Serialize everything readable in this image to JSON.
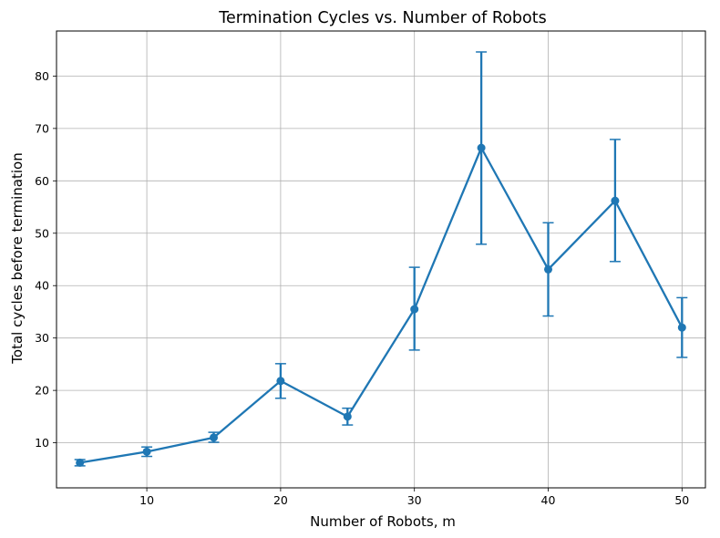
{
  "chart_data": {
    "type": "line",
    "title": "Termination Cycles vs. Number of Robots",
    "xlabel": "Number of Robots, m",
    "ylabel": "Total cycles before termination",
    "xlim": [
      3.25,
      51.75
    ],
    "ylim": [
      1.4,
      88.6
    ],
    "xticks": [
      10,
      20,
      30,
      40,
      50
    ],
    "yticks": [
      10,
      20,
      30,
      40,
      50,
      60,
      70,
      80
    ],
    "grid": true,
    "color": "#1f77b4",
    "x": [
      5,
      10,
      15,
      20,
      25,
      30,
      35,
      40,
      45,
      50
    ],
    "y": [
      6.2,
      8.3,
      11.0,
      21.8,
      15.0,
      35.5,
      66.3,
      43.1,
      56.2,
      32.0
    ],
    "err_low": [
      5.6,
      7.4,
      10.1,
      18.5,
      13.4,
      27.7,
      47.9,
      34.2,
      44.6,
      26.3
    ],
    "err_high": [
      6.8,
      9.2,
      12.0,
      25.1,
      16.6,
      43.5,
      84.6,
      52.0,
      67.9,
      37.7
    ]
  }
}
